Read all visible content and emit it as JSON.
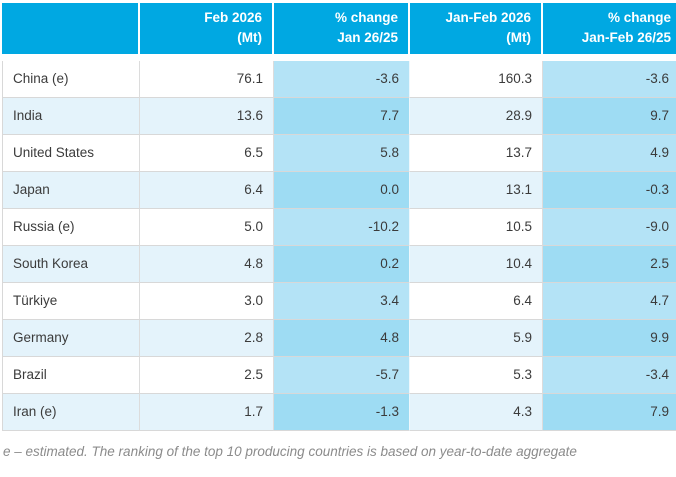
{
  "colors": {
    "header_bg": "#00a8e2",
    "row_alt_bg": "#e4f3fb",
    "pct_cell_bg": "#b4e3f6",
    "pct_cell_alt_bg": "#9edcf3",
    "border": "#d8d8d8",
    "body_text": "#3b3b3b",
    "footnote_text": "#8b8b8b"
  },
  "table": {
    "columns": [
      {
        "label": ""
      },
      {
        "label": "Feb 2026\n(Mt)"
      },
      {
        "label": "% change\nJan 26/25"
      },
      {
        "label": "Jan-Feb 2026\n(Mt)"
      },
      {
        "label": "% change\nJan-Feb 26/25"
      }
    ],
    "rows": [
      {
        "country": "China (e)",
        "feb_mt": "76.1",
        "pct_jan": "-3.6",
        "janfeb_mt": "160.3",
        "pct_janfeb": "-3.6"
      },
      {
        "country": "India",
        "feb_mt": "13.6",
        "pct_jan": "7.7",
        "janfeb_mt": "28.9",
        "pct_janfeb": "9.7"
      },
      {
        "country": "United States",
        "feb_mt": "6.5",
        "pct_jan": "5.8",
        "janfeb_mt": "13.7",
        "pct_janfeb": "4.9"
      },
      {
        "country": "Japan",
        "feb_mt": "6.4",
        "pct_jan": "0.0",
        "janfeb_mt": "13.1",
        "pct_janfeb": "-0.3"
      },
      {
        "country": "Russia (e)",
        "feb_mt": "5.0",
        "pct_jan": "-10.2",
        "janfeb_mt": "10.5",
        "pct_janfeb": "-9.0"
      },
      {
        "country": "South Korea",
        "feb_mt": "4.8",
        "pct_jan": "0.2",
        "janfeb_mt": "10.4",
        "pct_janfeb": "2.5"
      },
      {
        "country": "Türkiye",
        "feb_mt": "3.0",
        "pct_jan": "3.4",
        "janfeb_mt": "6.4",
        "pct_janfeb": "4.7"
      },
      {
        "country": "Germany",
        "feb_mt": "2.8",
        "pct_jan": "4.8",
        "janfeb_mt": "5.9",
        "pct_janfeb": "9.9"
      },
      {
        "country": "Brazil",
        "feb_mt": "2.5",
        "pct_jan": "-5.7",
        "janfeb_mt": "5.3",
        "pct_janfeb": "-3.4"
      },
      {
        "country": "Iran (e)",
        "feb_mt": "1.7",
        "pct_jan": "-1.3",
        "janfeb_mt": "4.3",
        "pct_janfeb": "7.9"
      }
    ]
  },
  "footnote": "e – estimated. The ranking of the top 10 producing countries is based on year-to-date aggregate",
  "chart_data": {
    "type": "table",
    "title": "",
    "columns": [
      "",
      "Feb 2026 (Mt)",
      "% change Jan 26/25",
      "Jan-Feb 2026 (Mt)",
      "% change Jan-Feb 26/25"
    ],
    "rows": [
      [
        "China (e)",
        76.1,
        -3.6,
        160.3,
        -3.6
      ],
      [
        "India",
        13.6,
        7.7,
        28.9,
        9.7
      ],
      [
        "United States",
        6.5,
        5.8,
        13.7,
        4.9
      ],
      [
        "Japan",
        6.4,
        0.0,
        13.1,
        -0.3
      ],
      [
        "Russia (e)",
        5.0,
        -10.2,
        10.5,
        -9.0
      ],
      [
        "South Korea",
        4.8,
        0.2,
        10.4,
        2.5
      ],
      [
        "Türkiye",
        3.0,
        3.4,
        6.4,
        4.7
      ],
      [
        "Germany",
        2.8,
        4.8,
        5.9,
        9.9
      ],
      [
        "Brazil",
        2.5,
        -5.7,
        5.3,
        -3.4
      ],
      [
        "Iran (e)",
        1.7,
        -1.3,
        4.3,
        7.9
      ]
    ],
    "footnote": "e – estimated. The ranking of the top 10 producing countries is based on year-to-date aggregate"
  }
}
